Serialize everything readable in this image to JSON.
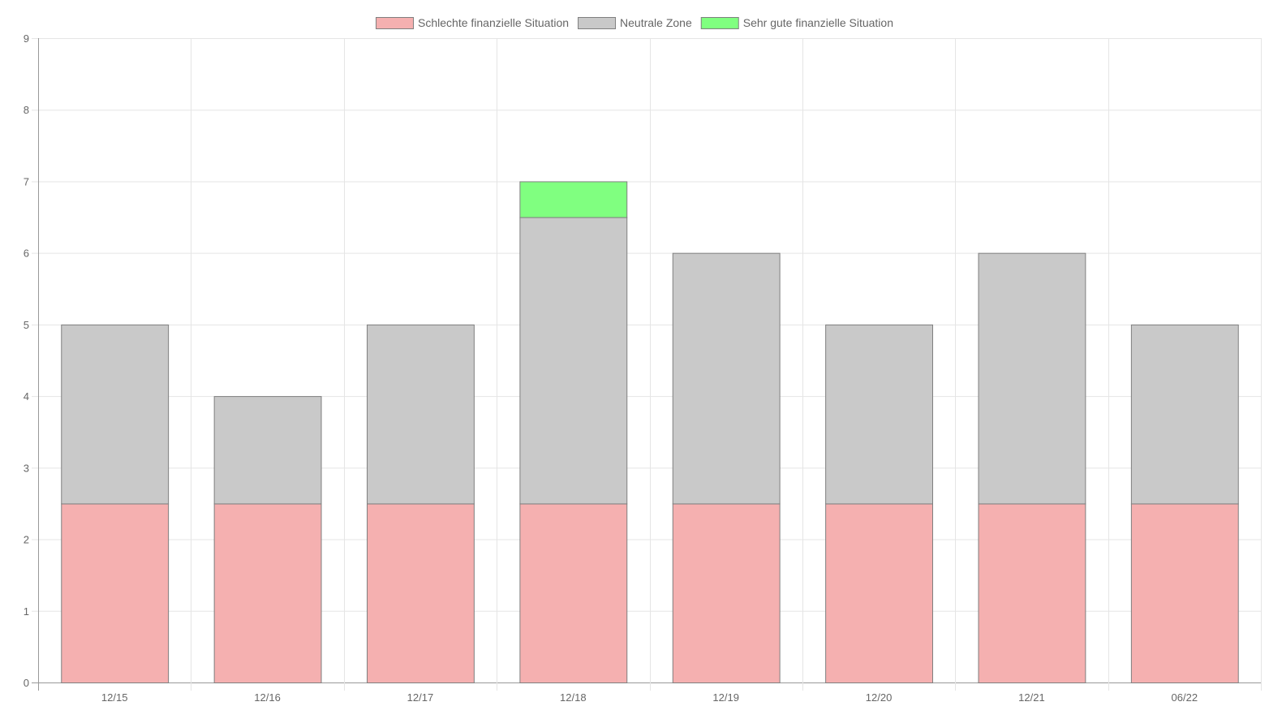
{
  "chart_data": {
    "type": "bar",
    "stacked": true,
    "categories": [
      "12/15",
      "12/16",
      "12/17",
      "12/18",
      "12/19",
      "12/20",
      "12/21",
      "06/22"
    ],
    "series": [
      {
        "name": "Schlechte finanzielle Situation",
        "color": "#f5b0b0",
        "values": [
          2.5,
          2.5,
          2.5,
          2.5,
          2.5,
          2.5,
          2.5,
          2.5
        ]
      },
      {
        "name": "Neutrale Zone",
        "color": "#c9c9c9",
        "values": [
          2.5,
          1.5,
          2.5,
          4,
          3.5,
          2.5,
          3.5,
          2.5
        ]
      },
      {
        "name": "Sehr gute finanzielle Situation",
        "color": "#80ff80",
        "values": [
          0,
          0,
          0,
          0.5,
          0,
          0,
          0,
          0
        ]
      }
    ],
    "ylim": [
      0,
      9
    ],
    "yticks": [
      0,
      1,
      2,
      3,
      4,
      5,
      6,
      7,
      8,
      9
    ],
    "grid": true,
    "legend_position": "top",
    "bar_border_color": "#7f7f7f",
    "grid_color": "#e5e5e5",
    "axis_color": "#999999"
  }
}
